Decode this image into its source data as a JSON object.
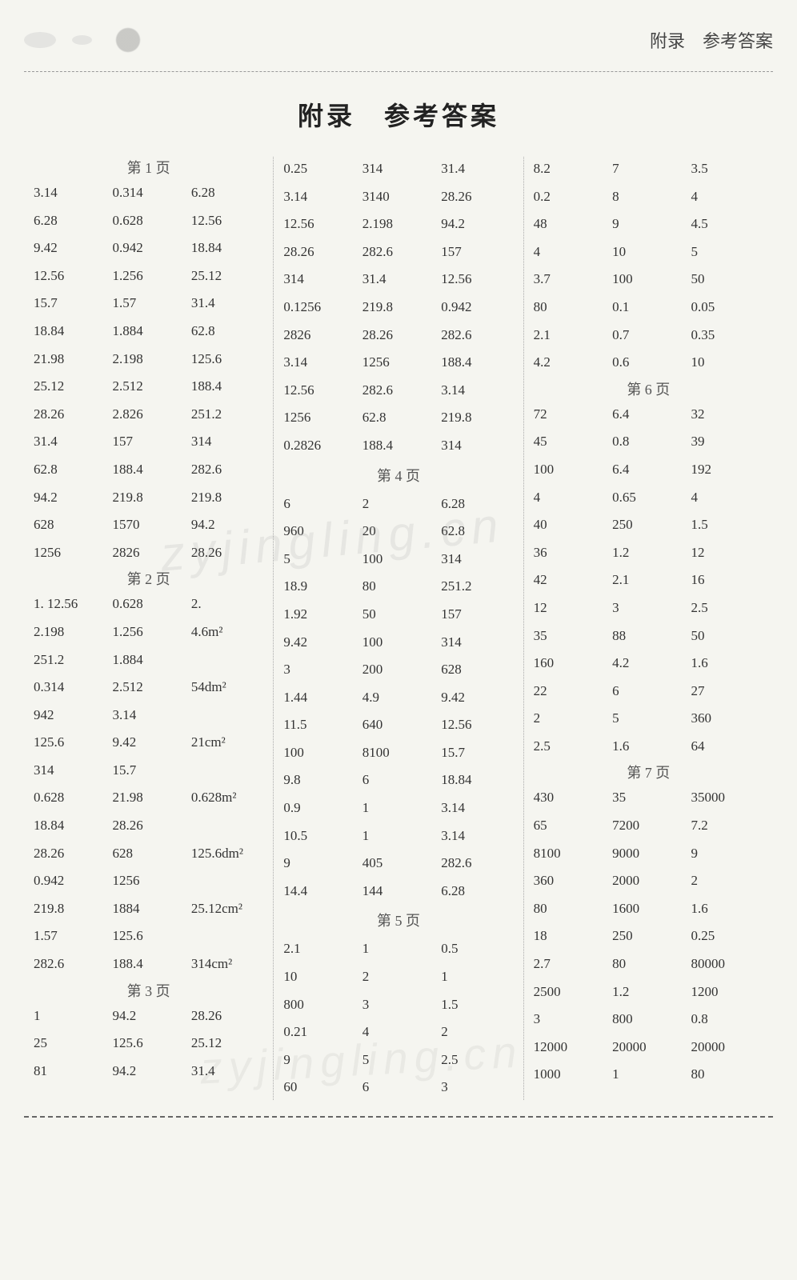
{
  "header": {
    "right_label": "附录　参考答案"
  },
  "title": "附录　参考答案",
  "columns": [
    {
      "rows": [
        {
          "type": "page_col2",
          "label": "第 1 页"
        },
        {
          "c": [
            "3.14",
            "0.314",
            "6.28"
          ]
        },
        {
          "c": [
            "6.28",
            "0.628",
            "12.56"
          ]
        },
        {
          "c": [
            "9.42",
            "0.942",
            "18.84"
          ]
        },
        {
          "c": [
            "12.56",
            "1.256",
            "25.12"
          ]
        },
        {
          "c": [
            "15.7",
            "1.57",
            "31.4"
          ]
        },
        {
          "c": [
            "18.84",
            "1.884",
            "62.8"
          ]
        },
        {
          "c": [
            "21.98",
            "2.198",
            "125.6"
          ]
        },
        {
          "c": [
            "25.12",
            "2.512",
            "188.4"
          ]
        },
        {
          "c": [
            "28.26",
            "2.826",
            "251.2"
          ]
        },
        {
          "c": [
            "31.4",
            "157",
            "314"
          ]
        },
        {
          "c": [
            "62.8",
            "188.4",
            "282.6"
          ]
        },
        {
          "c": [
            "94.2",
            "219.8",
            "219.8"
          ]
        },
        {
          "c": [
            "628",
            "1570",
            "94.2"
          ]
        },
        {
          "c": [
            "1256",
            "2826",
            "28.26"
          ]
        },
        {
          "type": "page_col2",
          "label": "第 2 页"
        },
        {
          "c": [
            "1. 12.56",
            "0.628",
            "2."
          ],
          "prefix1": true
        },
        {
          "c": [
            "2.198",
            "1.256",
            "4.6m²"
          ]
        },
        {
          "c": [
            "251.2",
            "1.884",
            ""
          ]
        },
        {
          "c": [
            "0.314",
            "2.512",
            "54dm²"
          ]
        },
        {
          "c": [
            "942",
            "3.14",
            ""
          ]
        },
        {
          "c": [
            "125.6",
            "9.42",
            "21cm²"
          ]
        },
        {
          "c": [
            "314",
            "15.7",
            ""
          ]
        },
        {
          "c": [
            "0.628",
            "21.98",
            "0.628m²"
          ]
        },
        {
          "c": [
            "18.84",
            "28.26",
            ""
          ]
        },
        {
          "c": [
            "28.26",
            "628",
            "125.6dm²"
          ]
        },
        {
          "c": [
            "0.942",
            "1256",
            ""
          ]
        },
        {
          "c": [
            "219.8",
            "1884",
            "25.12cm²"
          ]
        },
        {
          "c": [
            "1.57",
            "125.6",
            ""
          ]
        },
        {
          "c": [
            "282.6",
            "188.4",
            "314cm²"
          ]
        },
        {
          "type": "page_col2",
          "label": "第 3 页"
        },
        {
          "c": [
            "1",
            "94.2",
            "28.26"
          ]
        },
        {
          "c": [
            "25",
            "125.6",
            "25.12"
          ]
        },
        {
          "c": [
            "81",
            "94.2",
            "31.4"
          ]
        }
      ]
    },
    {
      "rows": [
        {
          "c": [
            "0.25",
            "314",
            "31.4"
          ]
        },
        {
          "c": [
            "3.14",
            "3140",
            "28.26"
          ]
        },
        {
          "c": [
            "12.56",
            "2.198",
            "94.2"
          ]
        },
        {
          "c": [
            "28.26",
            "282.6",
            "157"
          ]
        },
        {
          "c": [
            "314",
            "31.4",
            "12.56"
          ]
        },
        {
          "c": [
            "0.1256",
            "219.8",
            "0.942"
          ]
        },
        {
          "c": [
            "2826",
            "28.26",
            "282.6"
          ]
        },
        {
          "c": [
            "3.14",
            "1256",
            "188.4"
          ]
        },
        {
          "c": [
            "12.56",
            "282.6",
            "3.14"
          ]
        },
        {
          "c": [
            "1256",
            "62.8",
            "219.8"
          ]
        },
        {
          "c": [
            "0.2826",
            "188.4",
            "314"
          ]
        },
        {
          "type": "page",
          "label": "第 4 页"
        },
        {
          "c": [
            "6",
            "2",
            "6.28"
          ]
        },
        {
          "c": [
            "960",
            "20",
            "62.8"
          ]
        },
        {
          "c": [
            "5",
            "100",
            "314"
          ]
        },
        {
          "c": [
            "18.9",
            "80",
            "251.2"
          ]
        },
        {
          "c": [
            "1.92",
            "50",
            "157"
          ]
        },
        {
          "c": [
            "9.42",
            "100",
            "314"
          ]
        },
        {
          "c": [
            "3",
            "200",
            "628"
          ]
        },
        {
          "c": [
            "1.44",
            "4.9",
            "9.42"
          ]
        },
        {
          "c": [
            "11.5",
            "640",
            "12.56"
          ]
        },
        {
          "c": [
            "100",
            "8100",
            "15.7"
          ]
        },
        {
          "c": [
            "9.8",
            "6",
            "18.84"
          ]
        },
        {
          "c": [
            "0.9",
            "1",
            "3.14"
          ]
        },
        {
          "c": [
            "10.5",
            "1",
            "3.14"
          ]
        },
        {
          "c": [
            "9",
            "405",
            "282.6"
          ]
        },
        {
          "c": [
            "14.4",
            "144",
            "6.28"
          ]
        },
        {
          "type": "page",
          "label": "第 5 页"
        },
        {
          "c": [
            "2.1",
            "1",
            "0.5"
          ]
        },
        {
          "c": [
            "10",
            "2",
            "1"
          ]
        },
        {
          "c": [
            "800",
            "3",
            "1.5"
          ]
        },
        {
          "c": [
            "0.21",
            "4",
            "2"
          ]
        },
        {
          "c": [
            "9",
            "5",
            "2.5"
          ]
        },
        {
          "c": [
            "60",
            "6",
            "3"
          ]
        }
      ]
    },
    {
      "rows": [
        {
          "c": [
            "8.2",
            "7",
            "3.5"
          ]
        },
        {
          "c": [
            "0.2",
            "8",
            "4"
          ]
        },
        {
          "c": [
            "48",
            "9",
            "4.5"
          ]
        },
        {
          "c": [
            "4",
            "10",
            "5"
          ]
        },
        {
          "c": [
            "3.7",
            "100",
            "50"
          ]
        },
        {
          "c": [
            "80",
            "0.1",
            "0.05"
          ]
        },
        {
          "c": [
            "2.1",
            "0.7",
            "0.35"
          ]
        },
        {
          "c": [
            "4.2",
            "0.6",
            "10"
          ]
        },
        {
          "type": "page_col2_right",
          "label": "第 6 页"
        },
        {
          "c": [
            "72",
            "6.4",
            "32"
          ]
        },
        {
          "c": [
            "45",
            "0.8",
            "39"
          ]
        },
        {
          "c": [
            "100",
            "6.4",
            "192"
          ]
        },
        {
          "c": [
            "4",
            "0.65",
            "4"
          ]
        },
        {
          "c": [
            "40",
            "250",
            "1.5"
          ]
        },
        {
          "c": [
            "36",
            "1.2",
            "12"
          ]
        },
        {
          "c": [
            "42",
            "2.1",
            "16"
          ]
        },
        {
          "c": [
            "12",
            "3",
            "2.5"
          ]
        },
        {
          "c": [
            "35",
            "88",
            "50"
          ]
        },
        {
          "c": [
            "160",
            "4.2",
            "1.6"
          ]
        },
        {
          "c": [
            "22",
            "6",
            "27"
          ]
        },
        {
          "c": [
            "2",
            "5",
            "360"
          ]
        },
        {
          "c": [
            "2.5",
            "1.6",
            "64"
          ]
        },
        {
          "type": "page_col2_right",
          "label": "第 7 页"
        },
        {
          "c": [
            "430",
            "35",
            "35000"
          ]
        },
        {
          "c": [
            "65",
            "7200",
            "7.2"
          ]
        },
        {
          "c": [
            "8100",
            "9000",
            "9"
          ]
        },
        {
          "c": [
            "360",
            "2000",
            "2"
          ]
        },
        {
          "c": [
            "80",
            "1600",
            "1.6"
          ]
        },
        {
          "c": [
            "18",
            "250",
            "0.25"
          ]
        },
        {
          "c": [
            "2.7",
            "80",
            "80000"
          ]
        },
        {
          "c": [
            "2500",
            "1.2",
            "1200"
          ]
        },
        {
          "c": [
            "3",
            "800",
            "0.8"
          ]
        },
        {
          "c": [
            "12000",
            "20000",
            "20000"
          ]
        },
        {
          "c": [
            "1000",
            "1",
            "80"
          ]
        }
      ]
    }
  ],
  "watermarks": [
    "zyjingling.cn",
    "zyjingling.cn"
  ]
}
